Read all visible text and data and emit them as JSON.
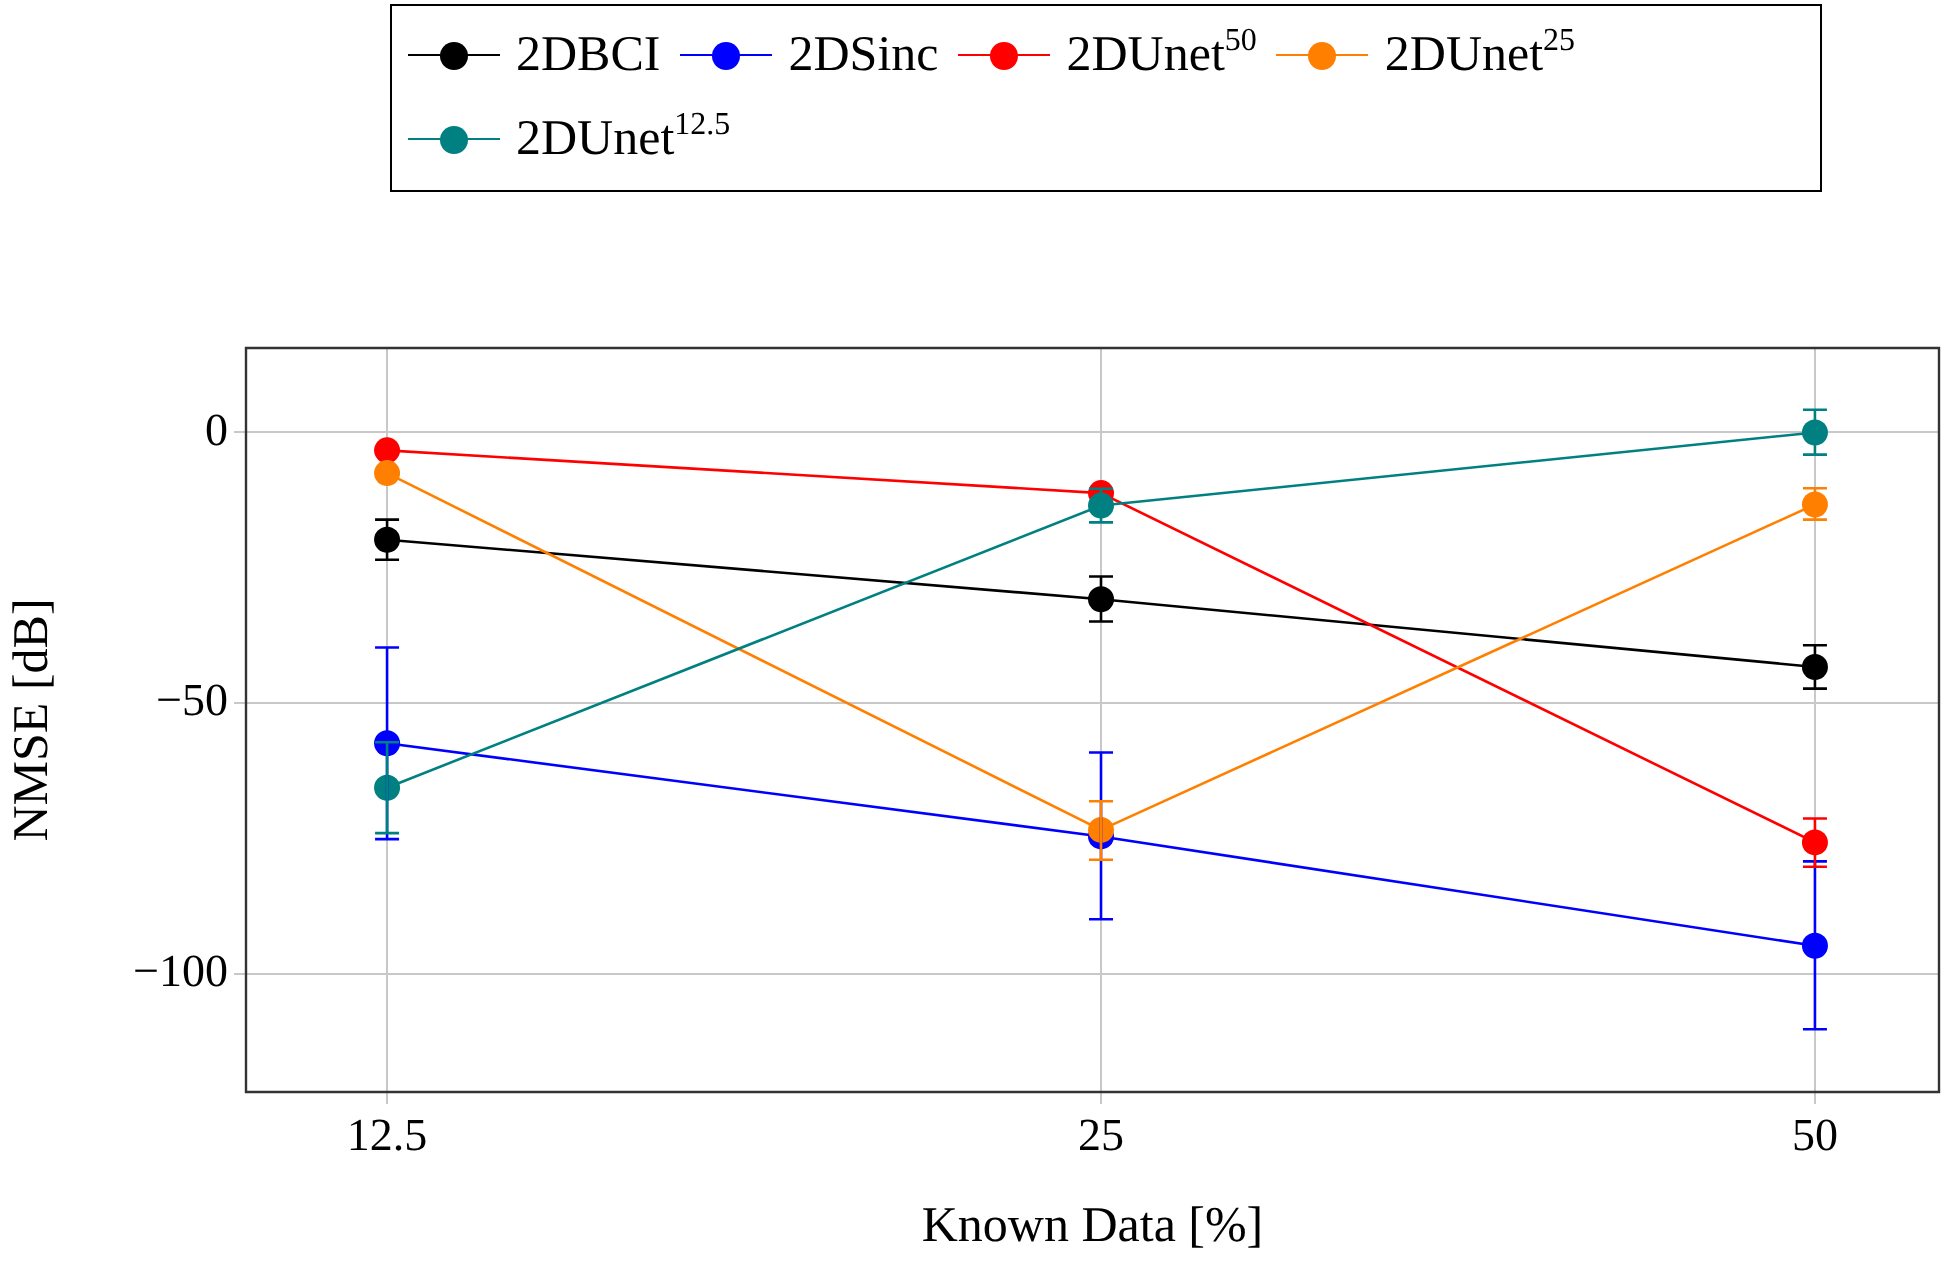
{
  "chart_data": {
    "type": "line",
    "xlabel": "Known Data [%]",
    "ylabel": "NMSE [dB]",
    "log": "x",
    "x": [
      12.5,
      25,
      50
    ],
    "xlim": [
      10.9,
      56.4
    ],
    "xticks": [
      12.5,
      25,
      50
    ],
    "ylim": [
      -121.8,
      15.6
    ],
    "yticks": [
      -100,
      -50,
      0
    ],
    "grid": true,
    "legend": "top",
    "marker": "circle",
    "line_style": "solid",
    "series": [
      {
        "name": "2DBCI",
        "color": "#000000",
        "values": [
          -19.8,
          -30.8,
          -43.3
        ],
        "errors": [
          [
            -23.5,
            -16.1
          ],
          [
            -34.9,
            -26.6
          ],
          [
            -47.3,
            -39.3
          ]
        ]
      },
      {
        "name": "2DSinc",
        "color": "#0000ff",
        "values": [
          -57.4,
          -74.6,
          -94.8
        ],
        "errors": [
          [
            -75.1,
            -39.7
          ],
          [
            -89.9,
            -59.1
          ],
          [
            -110.2,
            -79.2
          ]
        ]
      },
      {
        "name": "2DUnet$^{50}$",
        "color": "#ff0000",
        "values": [
          -3.3,
          -11.2,
          -75.7
        ],
        "errors": [
          null,
          null,
          [
            -80.2,
            -71.3
          ]
        ]
      },
      {
        "name": "2DUnet$^{25}$",
        "color": "#ff8000",
        "values": [
          -7.5,
          -73.4,
          -13.3
        ],
        "errors": [
          null,
          [
            -78.9,
            -68.1
          ],
          [
            -16.1,
            -10.3
          ]
        ]
      },
      {
        "name": "2DUnet$^{12.5}$",
        "color": "#008080",
        "values": [
          -65.6,
          -13.5,
          0
        ],
        "errors": [
          [
            -74,
            -57.2
          ],
          [
            -16.6,
            -10.4
          ],
          [
            -4.1,
            4.2
          ]
        ]
      }
    ]
  }
}
